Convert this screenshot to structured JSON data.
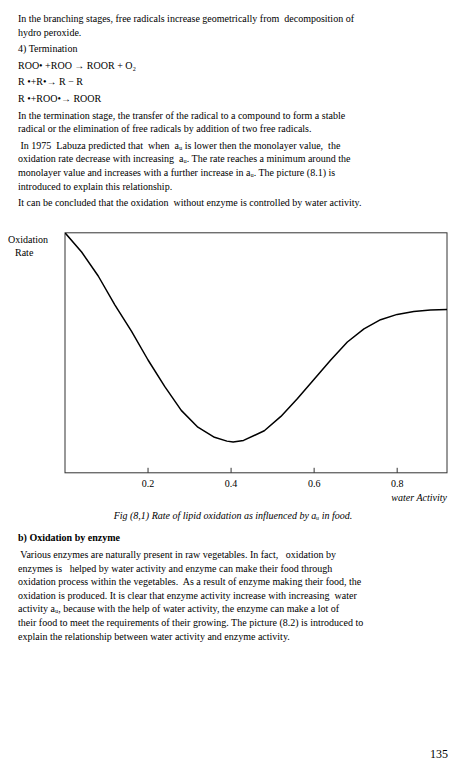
{
  "texts_above": [
    "In the branching stages, free radicals increase geometrically from  decomposition of\nhydro peroxide.",
    "4) Termination",
    "ROO• +ROO → ROOR + O₂",
    "R •+R•→ R − R",
    "R •+ROO•→ ROOR",
    "In the termination stage, the transfer of the radical to a compound to form a stable\nradical or the elimination of free radicals by addition of two free radicals.",
    " In 1975  Labuza predicted that  when  aᵤ is lower then the monolayer value,  the\noxidation rate decrease with increasing  aᵤ. The rate reaches a minimum around the\nmonolayer value and increases with a further increase in aᵤ. The picture (8.1) is\nintroduced to explain this relationship.",
    "It can be concluded that the oxidation  without enzyme is controlled by water activity."
  ],
  "texts_below": [
    "b) Oxidation by enzyme",
    " Various enzymes are naturally present in raw vegetables. In fact,   oxidation by\nenzymes is   helped by water activity and enzyme can make their food through\noxidation process within the vegetables.  As a result of enzyme making their food, the\noxidation is produced. It is clear that enzyme activity increase with increasing  water\nactivity aᵤ, because with the help of water activity, the enzyme can make a lot of\ntheir food to meet the requirements of their growing. The picture (8.2) is introduced to\nexplain the relationship between water activity and enzyme activity."
  ],
  "page_number": "135",
  "chart_data": {
    "type": "line",
    "title": "Fig (8,1) Rate of lipid oxidation as influenced by aᵤ in food.",
    "x_label": "water Activity",
    "y_label": "Oxidation\nRate",
    "x": [
      0.0,
      0.04,
      0.08,
      0.12,
      0.16,
      0.2,
      0.24,
      0.28,
      0.32,
      0.36,
      0.39,
      0.405,
      0.43,
      0.48,
      0.52,
      0.56,
      0.6,
      0.64,
      0.68,
      0.72,
      0.76,
      0.8,
      0.84,
      0.88,
      0.92
    ],
    "values": [
      1.0,
      0.92,
      0.82,
      0.7,
      0.59,
      0.47,
      0.36,
      0.26,
      0.19,
      0.148,
      0.132,
      0.128,
      0.135,
      0.175,
      0.235,
      0.31,
      0.39,
      0.47,
      0.545,
      0.6,
      0.638,
      0.66,
      0.672,
      0.678,
      0.68
    ],
    "color": "#000000",
    "xlim": [
      0.0,
      0.92
    ],
    "ylim": [
      0.0,
      1.0
    ],
    "xticks": [
      0.2,
      0.4,
      0.6,
      0.8
    ],
    "tick_labels": "x",
    "grid": false
  }
}
